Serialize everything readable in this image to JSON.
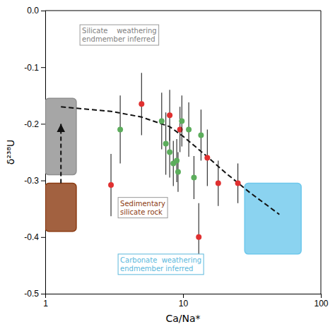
{
  "chart_data": {
    "type": "scatter",
    "xlabel": "Ca/Na*",
    "ylabel": "δ²³⁸U",
    "log": "x",
    "xlim": [
      1,
      100
    ],
    "ylim": [
      -0.5,
      0.0
    ],
    "xticks": [
      1,
      10,
      100
    ],
    "yticks": [
      {
        "value": 0.0,
        "label": "0.0"
      },
      -0.1,
      -0.2,
      -0.3,
      -0.4,
      -0.5
    ],
    "series": [
      {
        "type": "scatter",
        "marker": "circle",
        "color": "#E03030",
        "x": [
          5.0,
          3.0,
          8.0,
          9.5,
          15.0,
          18.0,
          13.0,
          25.0
        ],
        "values": [
          -0.165,
          -0.308,
          -0.185,
          -0.21,
          -0.26,
          -0.305,
          -0.4,
          -0.305
        ],
        "errors": [
          0.055,
          0.055,
          0.045,
          0.04,
          0.05,
          0.04,
          0.06,
          0.035
        ]
      },
      {
        "type": "scatter",
        "marker": "circle",
        "color": "#5CAD5C",
        "x": [
          3.5,
          7.0,
          7.5,
          8.0,
          8.5,
          9.0,
          9.2,
          9.8,
          11.0,
          12.0,
          13.5
        ],
        "values": [
          -0.21,
          -0.195,
          -0.235,
          -0.25,
          -0.27,
          -0.265,
          -0.285,
          -0.195,
          -0.21,
          -0.295,
          -0.22
        ],
        "errors": [
          0.06,
          0.05,
          0.055,
          0.045,
          0.04,
          0.038,
          0.035,
          0.045,
          0.048,
          0.038,
          0.045
        ]
      },
      {
        "type": "line",
        "line_style": "dashed",
        "color": "#111111",
        "x": [
          1.3,
          3.0,
          5.0,
          8.0,
          10.0,
          15.0,
          20.0,
          30.0,
          50.0
        ],
        "values": [
          -0.17,
          -0.178,
          -0.188,
          -0.205,
          -0.222,
          -0.258,
          -0.285,
          -0.32,
          -0.36
        ]
      }
    ],
    "regions": [
      {
        "xlim": [
          1.0,
          1.68
        ],
        "ylim": [
          -0.29,
          -0.155
        ],
        "color": "#909090"
      },
      {
        "xlim": [
          1.0,
          1.68
        ],
        "ylim": [
          -0.39,
          -0.305
        ],
        "color": "#8B3A10"
      },
      {
        "xlim": [
          28.0,
          72.0
        ],
        "ylim": [
          -0.43,
          -0.305
        ],
        "color": "#6EC8EC"
      }
    ],
    "arrow": {
      "x": 1.3,
      "y_start": -0.305,
      "y_end": -0.2,
      "color": "#111111"
    },
    "annotations": [
      {
        "text": "Silicate    weathering\nendmember inferred",
        "x": 1.85,
        "y": -0.025,
        "color": "#808080",
        "border_color": "#999999"
      },
      {
        "text": "Sedimentary\nsilicate rock",
        "x": 3.5,
        "y": -0.33,
        "color": "#8B3A10",
        "border_color": "#999999"
      },
      {
        "text": "Carbonate  weathering\nendmember inferred",
        "x": 3.5,
        "y": -0.43,
        "color": "#5BB8DC",
        "border_color": "#5BB8DC"
      }
    ]
  }
}
